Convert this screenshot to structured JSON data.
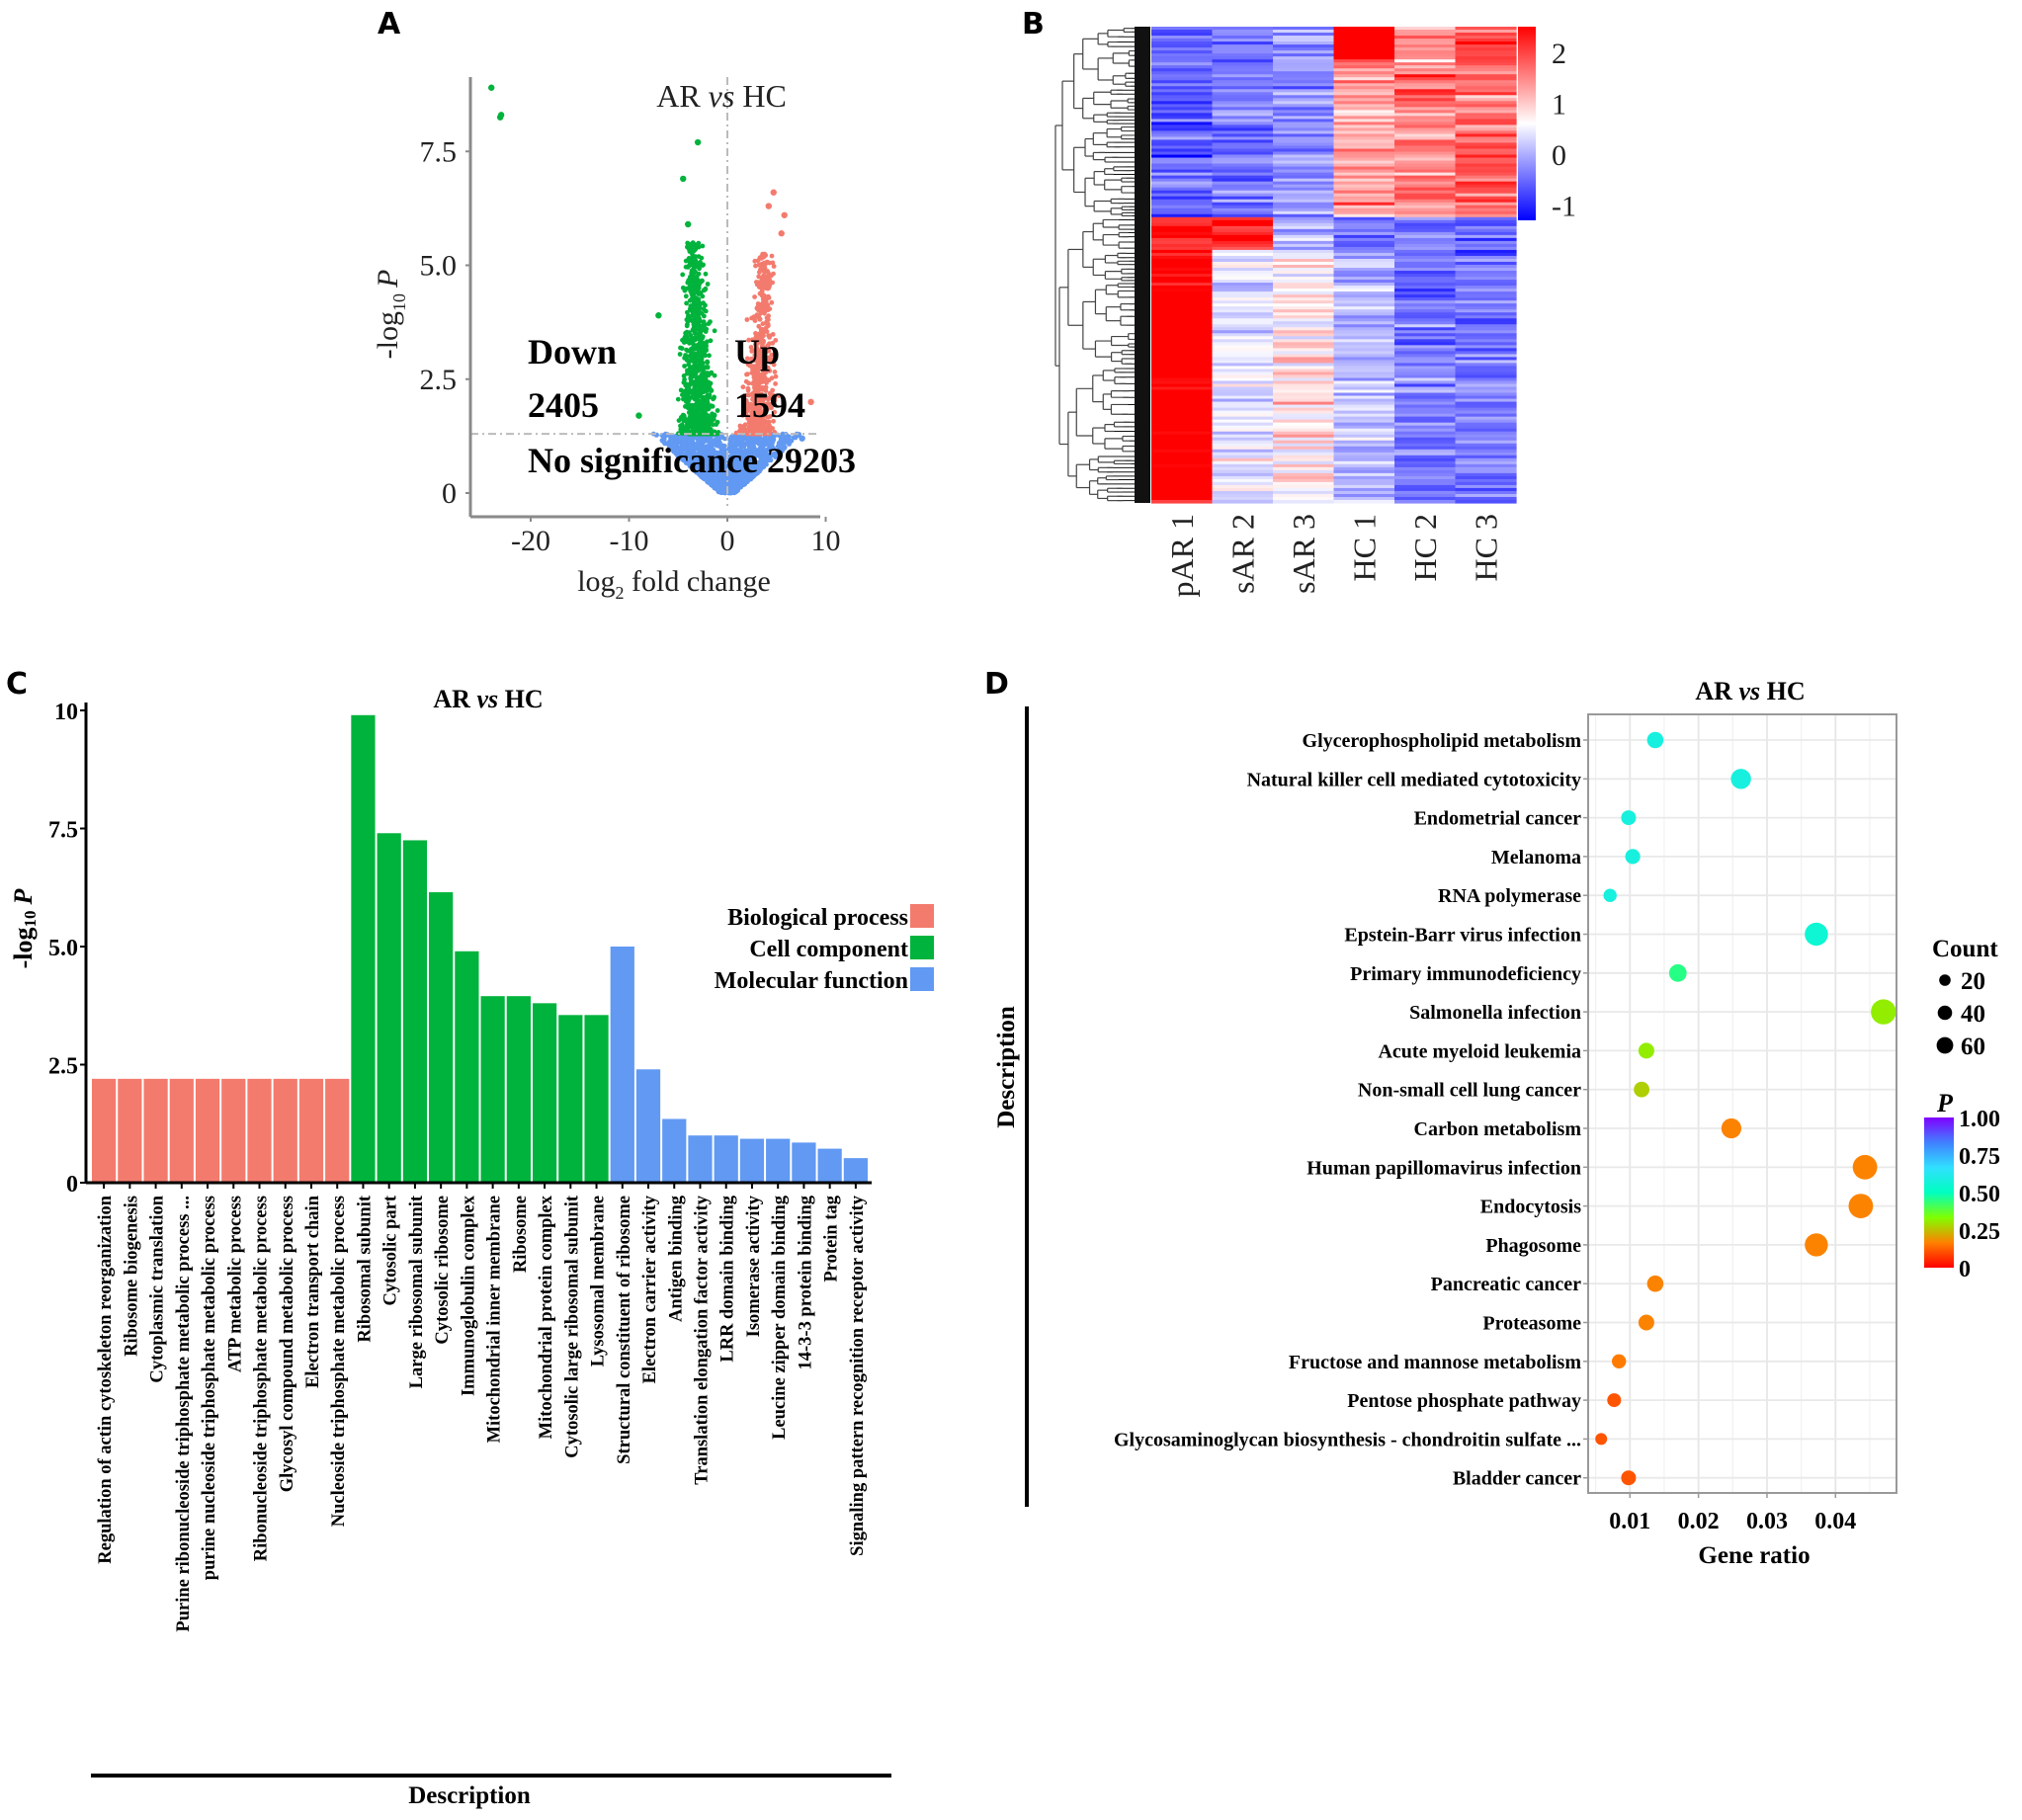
{
  "figure": {
    "panel_labels": [
      "A",
      "B",
      "C",
      "D"
    ]
  },
  "chart_data": [
    {
      "panel": "A",
      "type": "scatter",
      "title": "AR vs HC",
      "title_parts": {
        "pre": "AR ",
        "italic": "vs",
        "post": " HC"
      },
      "xlabel": "log2 fold change",
      "xlabel_parts": {
        "base": "log",
        "sub": "2",
        "rest": " fold change"
      },
      "ylabel": "-log10 P",
      "ylabel_parts": {
        "pre": "-log",
        "sub": "10",
        "italic": "P"
      },
      "xlim": [
        -26,
        10
      ],
      "ylim": [
        -0.5,
        9.2
      ],
      "xticks": [
        -20,
        -10,
        0,
        10
      ],
      "yticks": [
        0,
        2.5,
        5.0,
        7.5
      ],
      "ytick_labels": [
        "0",
        "2.5",
        "5.0",
        "7.5"
      ],
      "threshold_p": 1.3,
      "threshold_fc": 0,
      "groups": [
        {
          "name": "Down",
          "count": 2405,
          "color": "#00b33c"
        },
        {
          "name": "Up",
          "count": 1594,
          "color": "#f37b6e"
        },
        {
          "name": "No significance",
          "count": 29203,
          "color": "#6199f3"
        }
      ],
      "annotations": {
        "down_label": "Down",
        "down_count": "2405",
        "up_label": "Up",
        "up_count": "1594",
        "ns_label": "No significance 29203"
      },
      "outlier_points": [
        {
          "x": -24.0,
          "y": 8.9,
          "group": "Down"
        },
        {
          "x": -23.0,
          "y": 8.3,
          "group": "Down"
        },
        {
          "x": -23.1,
          "y": 8.25,
          "group": "Down"
        },
        {
          "x": -3.0,
          "y": 7.7,
          "group": "Down"
        },
        {
          "x": -4.5,
          "y": 6.9,
          "group": "Down"
        },
        {
          "x": -4.0,
          "y": 5.9,
          "group": "Down"
        },
        {
          "x": -7.0,
          "y": 3.9,
          "group": "Down"
        },
        {
          "x": -9.0,
          "y": 1.7,
          "group": "Down"
        },
        {
          "x": 4.7,
          "y": 6.6,
          "group": "Up"
        },
        {
          "x": 4.2,
          "y": 6.3,
          "group": "Up"
        },
        {
          "x": 5.8,
          "y": 6.1,
          "group": "Up"
        },
        {
          "x": 5.5,
          "y": 5.7,
          "group": "Up"
        },
        {
          "x": 8.5,
          "y": 2.0,
          "group": "Up"
        },
        {
          "x": 7.6,
          "y": 1.2,
          "group": "No significance"
        }
      ]
    },
    {
      "panel": "B",
      "type": "heatmap",
      "columns": [
        "pAR 1",
        "sAR 2",
        "sAR 3",
        "HC 1",
        "HC 2",
        "HC 3"
      ],
      "colorbar": {
        "min": -1.3,
        "max": 2.5,
        "ticks": [
          2,
          1,
          0,
          -1
        ],
        "tick_labels": [
          "2",
          "1",
          "0",
          "-1"
        ],
        "low": "#0000ff",
        "mid": "#ffffff",
        "high": "#ff0000"
      },
      "clusters": [
        {
          "fraction": 0.4,
          "means": [
            -0.6,
            -0.4,
            -0.2,
            1.2,
            1.4,
            1.6
          ],
          "note": "higher in HC"
        },
        {
          "fraction": 0.07,
          "means": [
            1.9,
            2.0,
            0.0,
            -0.4,
            -0.3,
            -0.4
          ],
          "note": "high in pAR1 and sAR2"
        },
        {
          "fraction": 0.53,
          "means": [
            2.4,
            0.4,
            0.7,
            0.1,
            -0.4,
            -0.4
          ],
          "note": "high in pAR1"
        }
      ],
      "hc1_top_block": {
        "fraction": 0.07,
        "value": 2.4
      }
    },
    {
      "panel": "C",
      "type": "bar",
      "title": "AR vs HC",
      "title_parts": {
        "pre": "AR ",
        "italic": "vs",
        "post": " HC"
      },
      "xlabel": "Description",
      "ylabel": "-log10 P",
      "ylabel_parts": {
        "pre": "-log",
        "sub": "10",
        "italic": "P"
      },
      "ylim": [
        0,
        10
      ],
      "yticks": [
        0,
        2.5,
        5.0,
        7.5,
        10
      ],
      "ytick_labels": [
        "0",
        "2.5",
        "5.0",
        "7.5",
        "10"
      ],
      "legend": {
        "position": "right",
        "entries": [
          {
            "label": "Biological  process",
            "color": "#f37b6e"
          },
          {
            "label": "Cell  component",
            "color": "#00b33c"
          },
          {
            "label": "Molecular  function",
            "color": "#6199f3"
          }
        ]
      },
      "categories": [
        "Regulation of actin cytoskeleton reorganization",
        "Ribosome biogenesis",
        "Cytoplasmic translation",
        "Purine ribonucleoside triphosphate metabolic process ...",
        "purine nucleoside triphosphate metabolic process",
        "ATP metabolic process",
        "Ribonucleoside triphosphate metabolic process",
        "Glycosyl compound metabolic process",
        "Electron transport chain",
        "Nucleoside triphosphate metabolic process",
        "Ribosomal subunit",
        "Cytosolic part",
        "Large ribosomal subunit",
        "Cytosolic ribosome",
        "Immunoglobulin complex",
        "Mitochondrial inner membrane",
        "Ribosome",
        "Mitochondrial protein complex",
        "Cytosolic large ribosomal subunit",
        "Lysosomal membrane",
        "Structural constituent of ribosome",
        "Electron carrier activity",
        "Antigen binding",
        "Translation elongation factor activity",
        "LRR domain binding",
        "Isomerase activity",
        "Leucine zipper domain binding",
        "14-3-3 protein binding",
        "Protein tag",
        "Signaling pattern recognition receptor activity"
      ],
      "groups": [
        "Biological process",
        "Biological process",
        "Biological process",
        "Biological process",
        "Biological process",
        "Biological process",
        "Biological process",
        "Biological process",
        "Biological process",
        "Biological process",
        "Cell component",
        "Cell component",
        "Cell component",
        "Cell component",
        "Cell component",
        "Cell component",
        "Cell component",
        "Cell component",
        "Cell component",
        "Cell component",
        "Molecular function",
        "Molecular function",
        "Molecular function",
        "Molecular function",
        "Molecular function",
        "Molecular function",
        "Molecular function",
        "Molecular function",
        "Molecular function",
        "Molecular function"
      ],
      "values": [
        2.2,
        2.2,
        2.2,
        2.2,
        2.2,
        2.2,
        2.2,
        2.2,
        2.2,
        2.2,
        9.9,
        7.4,
        7.25,
        6.15,
        4.9,
        3.95,
        3.95,
        3.8,
        3.55,
        3.55,
        5.0,
        2.4,
        1.35,
        1.0,
        1.0,
        0.93,
        0.93,
        0.85,
        0.72,
        0.52
      ]
    },
    {
      "panel": "D",
      "type": "scatter",
      "subtype": "bubble",
      "title": "AR vs HC",
      "title_parts": {
        "pre": "AR ",
        "italic": "vs",
        "post": " HC"
      },
      "xlabel": "Gene ratio",
      "ylabel": "Description",
      "xlim": [
        0.0039,
        0.0489
      ],
      "xticks": [
        0.01,
        0.02,
        0.03,
        0.04
      ],
      "xtick_labels": [
        "0.01",
        "0.02",
        "0.03",
        "0.04"
      ],
      "grid": true,
      "size_legend": {
        "title": "Count",
        "values": [
          20,
          40,
          60
        ],
        "labels": [
          "20",
          "40",
          "60"
        ]
      },
      "color_legend": {
        "title": "P",
        "ticks": [
          1.0,
          0.75,
          0.5,
          0.25,
          0
        ],
        "tick_labels": [
          "1.00",
          "0.75",
          "0.50",
          "0.25",
          "0"
        ],
        "stops": [
          "#ff0000",
          "#ff8000",
          "#80ff00",
          "#00ffc0",
          "#30e0ff",
          "#4080ff",
          "#8000ff"
        ]
      },
      "terms": [
        {
          "name": "Glycerophospholipid metabolism",
          "gene_ratio": 0.0137,
          "count": 22,
          "p": 0.58
        },
        {
          "name": "Natural killer cell mediated cytotoxicity",
          "gene_ratio": 0.0262,
          "count": 41,
          "p": 0.58
        },
        {
          "name": "Endometrial cancer",
          "gene_ratio": 0.0098,
          "count": 16,
          "p": 0.58
        },
        {
          "name": "Melanoma",
          "gene_ratio": 0.0104,
          "count": 17,
          "p": 0.58
        },
        {
          "name": "RNA polymerase",
          "gene_ratio": 0.0071,
          "count": 11,
          "p": 0.58
        },
        {
          "name": "Epstein-Barr virus infection",
          "gene_ratio": 0.0372,
          "count": 60,
          "p": 0.55
        },
        {
          "name": "Primary immunodeficiency",
          "gene_ratio": 0.017,
          "count": 28,
          "p": 0.45
        },
        {
          "name": "Salmonella infection",
          "gene_ratio": 0.047,
          "count": 75,
          "p": 0.31
        },
        {
          "name": "Acute myeloid leukemia",
          "gene_ratio": 0.0124,
          "count": 20,
          "p": 0.31
        },
        {
          "name": "Non-small cell lung cancer",
          "gene_ratio": 0.0117,
          "count": 19,
          "p": 0.27
        },
        {
          "name": "Carbon metabolism",
          "gene_ratio": 0.0248,
          "count": 40,
          "p": 0.17
        },
        {
          "name": "Human papillomavirus infection",
          "gene_ratio": 0.0443,
          "count": 71,
          "p": 0.17
        },
        {
          "name": "Endocytosis",
          "gene_ratio": 0.0437,
          "count": 70,
          "p": 0.17
        },
        {
          "name": "Phagosome",
          "gene_ratio": 0.0372,
          "count": 61,
          "p": 0.17
        },
        {
          "name": "Pancreatic cancer",
          "gene_ratio": 0.0137,
          "count": 22,
          "p": 0.17
        },
        {
          "name": "Proteasome",
          "gene_ratio": 0.0124,
          "count": 20,
          "p": 0.17
        },
        {
          "name": "Fructose and mannose metabolism",
          "gene_ratio": 0.0084,
          "count": 14,
          "p": 0.16
        },
        {
          "name": "Pentose phosphate pathway",
          "gene_ratio": 0.0077,
          "count": 13,
          "p": 0.11
        },
        {
          "name": "Glycosaminoglycan biosynthesis - chondroitin sulfate ...",
          "gene_ratio": 0.0058,
          "count": 7,
          "p": 0.11
        },
        {
          "name": "Bladder cancer",
          "gene_ratio": 0.0098,
          "count": 16,
          "p": 0.11
        }
      ]
    }
  ]
}
